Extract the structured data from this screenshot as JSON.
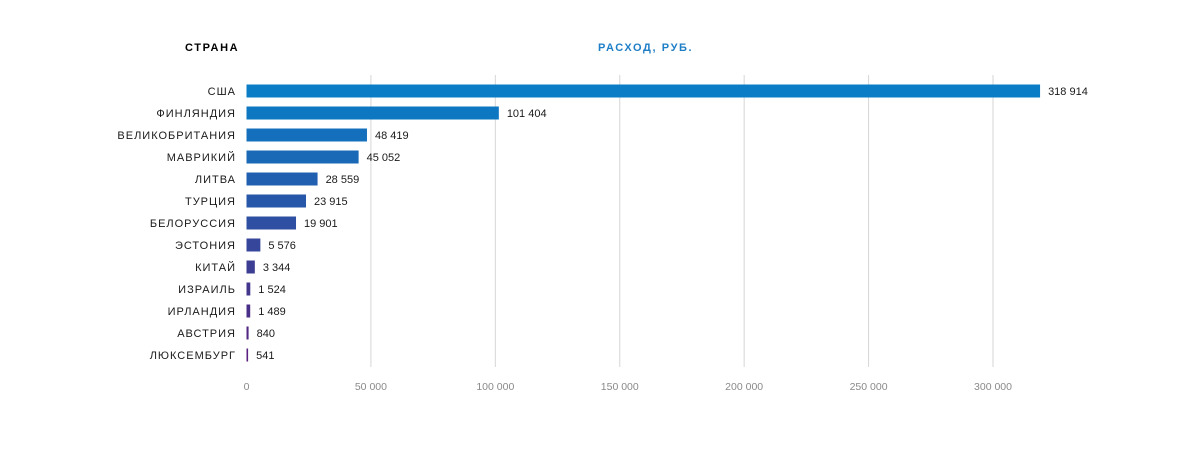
{
  "headers": {
    "country": "СТРАНА",
    "expense": "РАСХОД, РУБ."
  },
  "chart_data": {
    "type": "bar",
    "orientation": "horizontal",
    "title": "",
    "xlabel": "РАСХОД, РУБ.",
    "ylabel": "СТРАНА",
    "xlim": [
      0,
      320000
    ],
    "x_ticks": [
      0,
      50000,
      100000,
      150000,
      200000,
      250000,
      300000
    ],
    "x_tick_labels": [
      "0",
      "50 000",
      "100 000",
      "150 000",
      "200 000",
      "250 000",
      "300 000"
    ],
    "grid": true,
    "categories": [
      "США",
      "ФИНЛЯНДИЯ",
      "ВЕЛИКОБРИТАНИЯ",
      "МАВРИКИЙ",
      "ЛИТВА",
      "ТУРЦИЯ",
      "БЕЛОРУССИЯ",
      "ЭСТОНИЯ",
      "КИТАЙ",
      "ИЗРАИЛЬ",
      "ИРЛАНДИЯ",
      "АВСТРИЯ",
      "ЛЮКСЕМБУРГ"
    ],
    "values": [
      318914,
      101404,
      48419,
      45052,
      28559,
      23915,
      19901,
      5576,
      3344,
      1524,
      1489,
      840,
      541
    ],
    "value_labels": [
      "318 914",
      "101 404",
      "48 419",
      "45 052",
      "28 559",
      "23 915",
      "19 901",
      "5 576",
      "3 344",
      "1 524",
      "1 489",
      "840",
      "541"
    ],
    "bar_colors": [
      "#0a7dc6",
      "#0e77c2",
      "#1470bd",
      "#1a69b7",
      "#2160b1",
      "#2757a9",
      "#2e4fa2",
      "#35469b",
      "#3c3e93",
      "#43368d",
      "#4a2f88",
      "#522783",
      "#5a2180"
    ]
  }
}
